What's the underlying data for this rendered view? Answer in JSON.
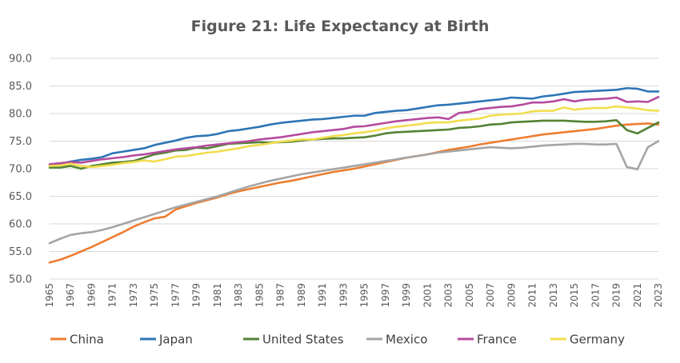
{
  "chart_data": {
    "type": "line",
    "title": "Figure 21:  Life Expectancy at Birth",
    "xlabel": "",
    "ylabel": "",
    "ylim": [
      50,
      90
    ],
    "yticks": [
      "50.0",
      "55.0",
      "60.0",
      "65.0",
      "70.0",
      "75.0",
      "80.0",
      "85.0",
      "90.0"
    ],
    "xtick_labels": [
      "1965",
      "1967",
      "1969",
      "1971",
      "1973",
      "1975",
      "1977",
      "1979",
      "1981",
      "1983",
      "1985",
      "1987",
      "1989",
      "1991",
      "1993",
      "1995",
      "1997",
      "1999",
      "2001",
      "2003",
      "2005",
      "2007",
      "2009",
      "2011",
      "2013",
      "2015",
      "2017",
      "2019",
      "2021",
      "2023"
    ],
    "grid": true,
    "legend_position": "bottom",
    "x": [
      1965,
      1966,
      1967,
      1968,
      1969,
      1970,
      1971,
      1972,
      1973,
      1974,
      1975,
      1976,
      1977,
      1978,
      1979,
      1980,
      1981,
      1982,
      1983,
      1984,
      1985,
      1986,
      1987,
      1988,
      1989,
      1990,
      1991,
      1992,
      1993,
      1994,
      1995,
      1996,
      1997,
      1998,
      1999,
      2000,
      2001,
      2002,
      2003,
      2004,
      2005,
      2006,
      2007,
      2008,
      2009,
      2010,
      2011,
      2012,
      2013,
      2014,
      2015,
      2016,
      2017,
      2018,
      2019,
      2020,
      2021,
      2022,
      2023
    ],
    "series": [
      {
        "name": "China",
        "color": "#ED7D31",
        "values": [
          53.0,
          53.5,
          54.2,
          55.0,
          55.8,
          56.7,
          57.6,
          58.5,
          59.5,
          60.3,
          61.0,
          61.3,
          62.6,
          63.2,
          63.8,
          64.3,
          64.8,
          65.4,
          65.9,
          66.3,
          66.7,
          67.1,
          67.5,
          67.8,
          68.2,
          68.6,
          69.0,
          69.4,
          69.7,
          70.0,
          70.4,
          70.8,
          71.2,
          71.6,
          72.0,
          72.3,
          72.6,
          73.0,
          73.4,
          73.7,
          74.0,
          74.4,
          74.7,
          75.0,
          75.3,
          75.6,
          75.9,
          76.2,
          76.4,
          76.6,
          76.8,
          77.0,
          77.2,
          77.5,
          77.8,
          78.0,
          78.1,
          78.2,
          78.0
        ]
      },
      {
        "name": "Japan",
        "color": "#2E75B6",
        "values": [
          70.6,
          70.9,
          71.3,
          71.6,
          71.8,
          72.1,
          72.8,
          73.1,
          73.4,
          73.7,
          74.3,
          74.7,
          75.1,
          75.6,
          75.9,
          76.0,
          76.3,
          76.8,
          77.0,
          77.3,
          77.6,
          78.0,
          78.3,
          78.5,
          78.7,
          78.9,
          79.0,
          79.2,
          79.4,
          79.6,
          79.6,
          80.1,
          80.3,
          80.5,
          80.6,
          80.9,
          81.2,
          81.5,
          81.6,
          81.8,
          82.0,
          82.2,
          82.4,
          82.6,
          82.9,
          82.8,
          82.7,
          83.1,
          83.3,
          83.6,
          83.9,
          84.0,
          84.1,
          84.2,
          84.3,
          84.6,
          84.5,
          84.0,
          84.0
        ]
      },
      {
        "name": "United States",
        "color": "#548235",
        "values": [
          70.2,
          70.2,
          70.5,
          70.0,
          70.5,
          70.8,
          71.1,
          71.2,
          71.4,
          72.0,
          72.6,
          72.9,
          73.3,
          73.4,
          73.8,
          73.7,
          74.1,
          74.5,
          74.6,
          74.7,
          74.8,
          74.7,
          74.8,
          74.9,
          75.1,
          75.3,
          75.4,
          75.5,
          75.5,
          75.6,
          75.7,
          76.0,
          76.4,
          76.6,
          76.7,
          76.8,
          76.9,
          77.0,
          77.1,
          77.4,
          77.5,
          77.7,
          78.0,
          78.1,
          78.4,
          78.5,
          78.6,
          78.7,
          78.7,
          78.7,
          78.6,
          78.5,
          78.5,
          78.6,
          78.8,
          77.0,
          76.4,
          77.4,
          78.4
        ]
      },
      {
        "name": "Mexico",
        "color": "#A5A5A5",
        "values": [
          56.5,
          57.3,
          58.0,
          58.3,
          58.5,
          58.9,
          59.4,
          60.0,
          60.6,
          61.2,
          61.8,
          62.4,
          63.0,
          63.5,
          64.0,
          64.5,
          65.0,
          65.6,
          66.2,
          66.8,
          67.3,
          67.8,
          68.2,
          68.6,
          69.0,
          69.3,
          69.6,
          69.9,
          70.2,
          70.5,
          70.8,
          71.1,
          71.4,
          71.7,
          72.0,
          72.3,
          72.6,
          72.9,
          73.1,
          73.3,
          73.5,
          73.7,
          73.9,
          73.8,
          73.7,
          73.8,
          74.0,
          74.2,
          74.3,
          74.4,
          74.5,
          74.5,
          74.4,
          74.4,
          74.5,
          70.3,
          69.9,
          73.9,
          75.0
        ]
      },
      {
        "name": "France",
        "color": "#B54B9E",
        "values": [
          70.8,
          71.0,
          71.2,
          71.1,
          71.4,
          71.7,
          71.9,
          72.1,
          72.4,
          72.6,
          72.9,
          73.2,
          73.5,
          73.7,
          73.9,
          74.2,
          74.4,
          74.6,
          74.8,
          75.0,
          75.3,
          75.5,
          75.7,
          76.0,
          76.3,
          76.6,
          76.8,
          77.0,
          77.2,
          77.6,
          77.7,
          78.0,
          78.3,
          78.6,
          78.8,
          79.0,
          79.2,
          79.3,
          79.0,
          80.1,
          80.3,
          80.8,
          81.0,
          81.2,
          81.3,
          81.6,
          82.0,
          82.0,
          82.2,
          82.6,
          82.2,
          82.5,
          82.6,
          82.7,
          82.9,
          82.1,
          82.2,
          82.1,
          83.0
        ]
      },
      {
        "name": "Germany",
        "color": "#F2DD4E",
        "values": [
          70.5,
          70.6,
          70.9,
          70.5,
          70.3,
          70.5,
          70.7,
          71.0,
          71.2,
          71.5,
          71.3,
          71.7,
          72.2,
          72.3,
          72.6,
          72.9,
          73.1,
          73.4,
          73.7,
          74.1,
          74.3,
          74.6,
          74.9,
          75.1,
          75.3,
          75.3,
          75.6,
          75.9,
          76.1,
          76.4,
          76.6,
          76.9,
          77.3,
          77.6,
          77.8,
          78.0,
          78.3,
          78.4,
          78.4,
          78.7,
          78.9,
          79.1,
          79.6,
          79.8,
          79.9,
          80.0,
          80.4,
          80.5,
          80.5,
          81.1,
          80.7,
          80.9,
          81.0,
          81.0,
          81.3,
          81.1,
          80.9,
          80.6,
          80.5
        ]
      }
    ]
  }
}
